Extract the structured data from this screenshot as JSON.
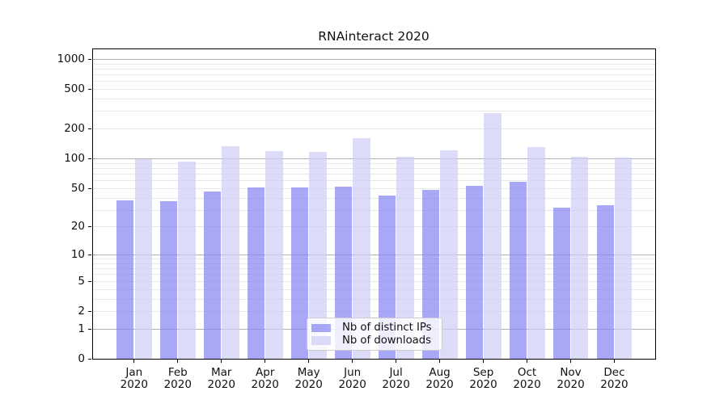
{
  "chart_data": {
    "type": "bar",
    "title": "RNAinteract 2020",
    "categories": [
      "Jan",
      "Feb",
      "Mar",
      "Apr",
      "May",
      "Jun",
      "Jul",
      "Aug",
      "Sep",
      "Oct",
      "Nov",
      "Dec"
    ],
    "category_year_line": "2020",
    "series": [
      {
        "name": "Nb of distinct IPs",
        "color": "rgba(135,135,243,0.72)",
        "values": [
          38,
          37,
          47,
          51,
          51,
          52,
          42,
          48,
          53,
          58,
          32,
          34
        ]
      },
      {
        "name": "Nb of downloads",
        "color": "rgba(206,206,247,0.72)",
        "values": [
          100,
          94,
          135,
          119,
          118,
          162,
          105,
          122,
          290,
          132,
          105,
          104
        ]
      }
    ],
    "y_axis": {
      "scale": "log1p",
      "tick_values": [
        0,
        1,
        2,
        5,
        10,
        20,
        50,
        100,
        200,
        500,
        1000
      ],
      "major_grid_values": [
        1,
        10,
        100,
        1000
      ],
      "minor_grid_values": [
        2,
        3,
        4,
        5,
        6,
        7,
        8,
        9,
        20,
        30,
        40,
        50,
        60,
        70,
        80,
        90,
        200,
        300,
        400,
        500,
        600,
        700,
        800,
        900
      ],
      "range": [
        0,
        1297
      ]
    },
    "legend": {
      "position": "lower center"
    },
    "colors": {
      "major_grid": "#b0b0b0",
      "minor_grid": "#e8e8e8",
      "spine": "#000000",
      "text": "#111111",
      "background": "#ffffff"
    }
  }
}
